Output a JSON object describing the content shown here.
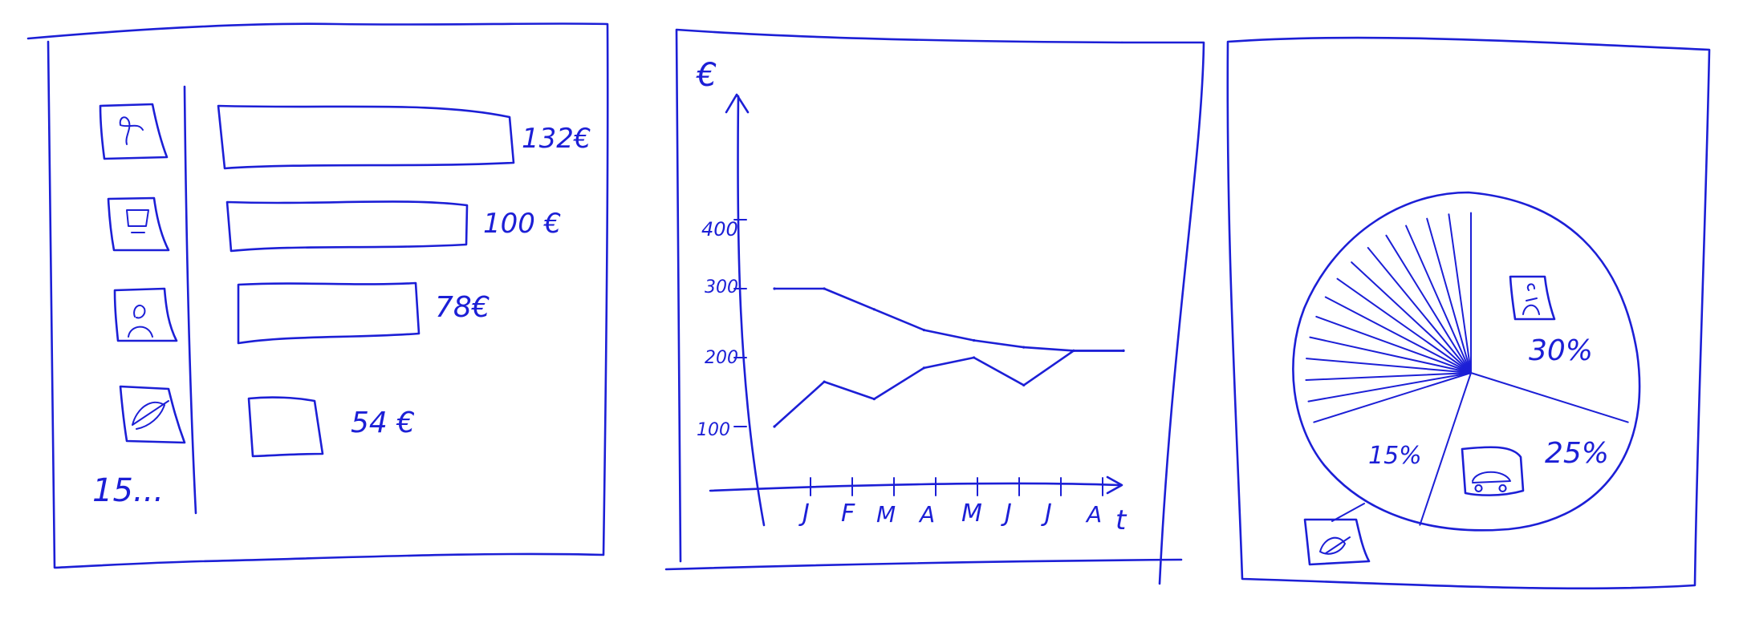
{
  "ink_color": "#1c1fd6",
  "panel_bars": {
    "items": [
      {
        "icon": "bird-icon",
        "value_label": "132€"
      },
      {
        "icon": "car-icon",
        "value_label": "100 €"
      },
      {
        "icon": "person-icon",
        "value_label": "78€"
      },
      {
        "icon": "leaf-icon",
        "value_label": "54 €"
      }
    ],
    "more_label": "15..."
  },
  "panel_line": {
    "ylabel": "€",
    "yticks": [
      "400",
      "300",
      "200",
      "100"
    ],
    "months": [
      "J",
      "F",
      "M",
      "A",
      "M",
      "J",
      "J",
      "A"
    ],
    "xlabel": "t"
  },
  "panel_pie": {
    "labels": {
      "person": "30%",
      "car": "25%",
      "leaf": "15%"
    }
  },
  "chart_data": [
    {
      "type": "bar",
      "categories": [
        "",
        "",
        "",
        ""
      ],
      "values": [
        132,
        100,
        78,
        54
      ],
      "data_labels": [
        "132€",
        "100 €",
        "78€",
        "54 €"
      ],
      "orientation": "horizontal",
      "more_label": "15..."
    },
    {
      "type": "line",
      "x": [
        "J",
        "F",
        "M",
        "A",
        "M",
        "J",
        "J",
        "A"
      ],
      "ylabel": "€",
      "xlabel": "t",
      "yticks": [
        100,
        200,
        300,
        400
      ],
      "series": [
        {
          "values": [
            300,
            300,
            270,
            240,
            225,
            215,
            210,
            210
          ]
        },
        {
          "values": [
            100,
            165,
            140,
            185,
            200,
            160,
            210,
            210
          ]
        }
      ]
    },
    {
      "type": "pie",
      "slices": [
        {
          "icon": "person-icon",
          "label": "30%",
          "value": 30
        },
        {
          "icon": "car-icon",
          "label": "25%",
          "value": 25
        },
        {
          "icon": "leaf-icon",
          "label": "15%",
          "value": 15
        }
      ],
      "unlabeled_slice_count": 14
    }
  ]
}
